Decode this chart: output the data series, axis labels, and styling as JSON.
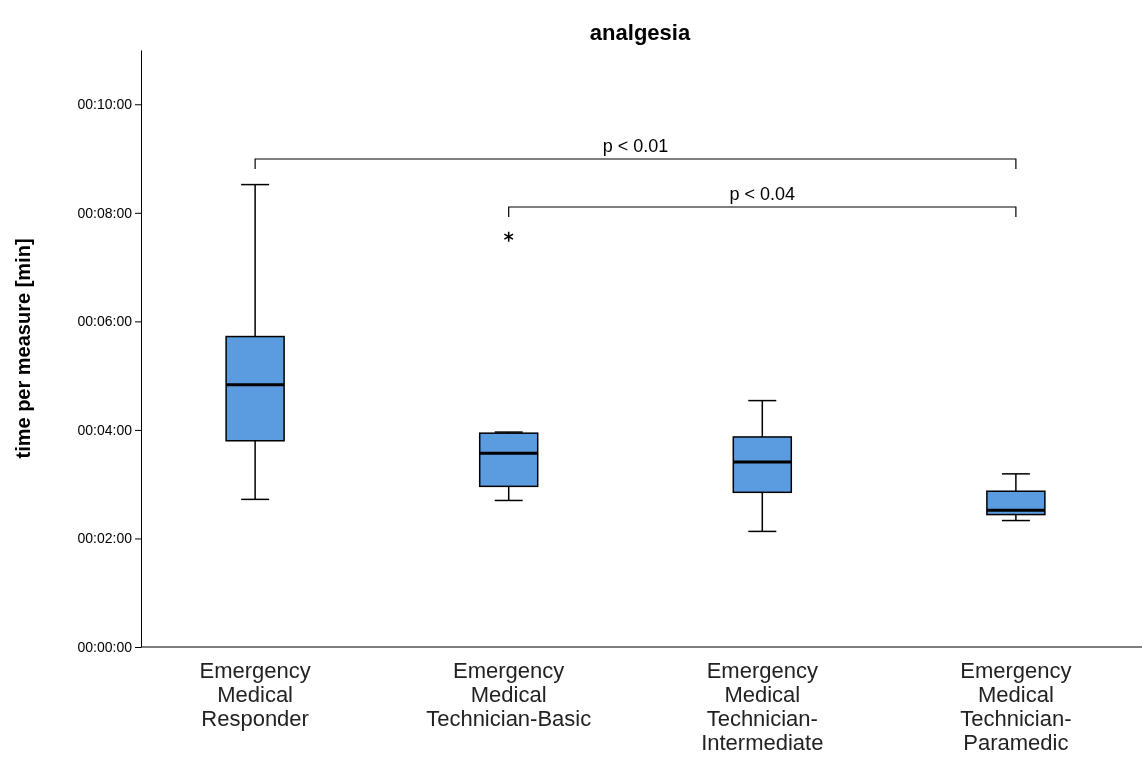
{
  "chart_data": {
    "type": "box",
    "title": "analgesia",
    "ylabel": "time per measure [min]",
    "categories": [
      "Emergency Medical Responder",
      "Emergency Medical Technician-Basic",
      "Emergency Medical Technician-Intermediate",
      "Emergency Medical Technician-Paramedic"
    ],
    "boxes": [
      {
        "low": 2.72,
        "q1": 3.8,
        "median": 4.83,
        "q3": 5.72,
        "high": 8.52
      },
      {
        "low": 2.7,
        "q1": 2.96,
        "median": 3.57,
        "q3": 3.94,
        "high": 3.96,
        "outliers": [
          7.56
        ]
      },
      {
        "low": 2.13,
        "q1": 2.85,
        "median": 3.41,
        "q3": 3.87,
        "high": 4.54
      },
      {
        "low": 2.33,
        "q1": 2.44,
        "median": 2.52,
        "q3": 2.87,
        "high": 3.19
      }
    ],
    "color": "#5b9be0",
    "ylim": [
      0,
      11
    ],
    "yticks": [
      {
        "value": 0,
        "label": "00:00:00"
      },
      {
        "value": 2,
        "label": "00:02:00"
      },
      {
        "value": 4,
        "label": "00:04:00"
      },
      {
        "value": 6,
        "label": "00:06:00"
      },
      {
        "value": 8,
        "label": "00:08:00"
      },
      {
        "value": 10,
        "label": "00:10:00"
      }
    ],
    "grid": false,
    "annotations": [
      "p < 0.01",
      "p < 0.04"
    ]
  }
}
